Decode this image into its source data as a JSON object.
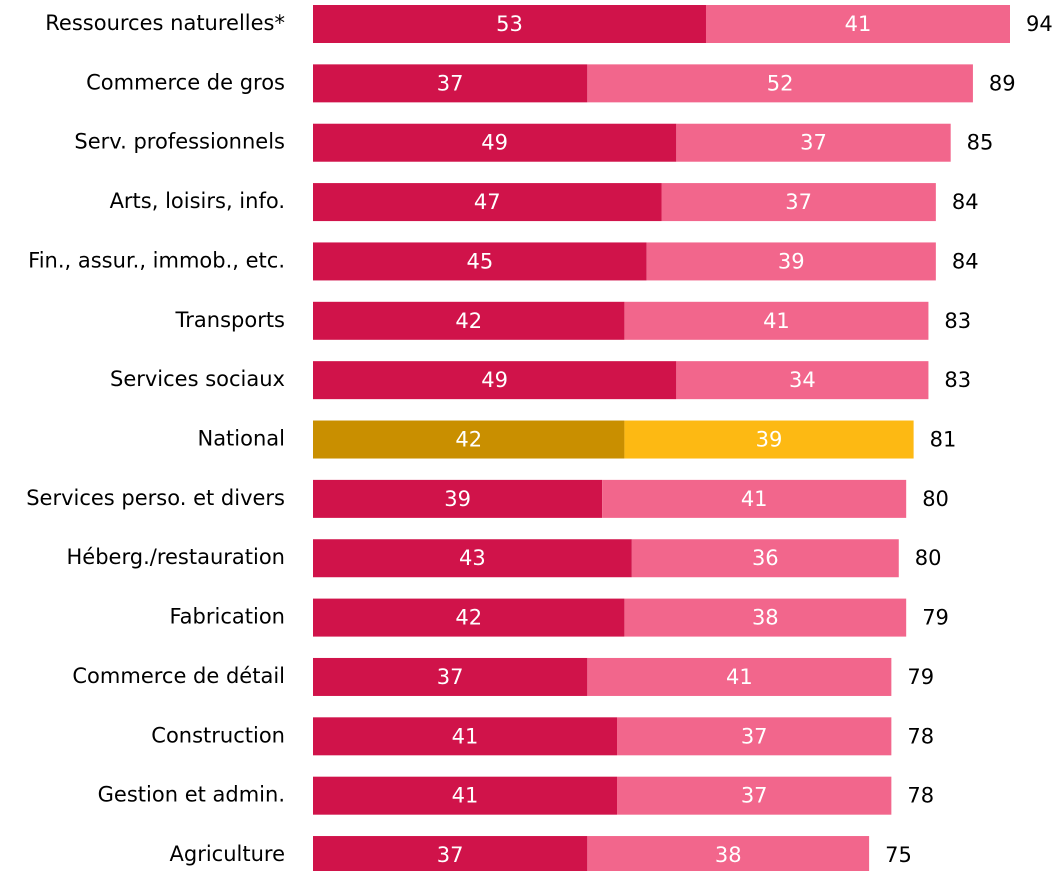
{
  "chart_data": {
    "type": "stacked-barh",
    "categories": [
      "Ressources naturelles*",
      "Commerce de gros",
      "Serv. professionnels",
      "Arts, loisirs, info.",
      "Fin., assur., immob., etc.",
      "Transports",
      "Services sociaux",
      "National",
      "Services perso. et divers",
      "Héberg./restauration",
      "Fabrication",
      "Commerce de détail",
      "Construction",
      "Gestion et admin.",
      "Agriculture"
    ],
    "series": [
      {
        "color": "#d0134a",
        "values": [
          53,
          37,
          49,
          47,
          45,
          42,
          49,
          42,
          39,
          43,
          42,
          37,
          41,
          41,
          37
        ]
      },
      {
        "color": "#f2668c",
        "values": [
          41,
          52,
          37,
          37,
          39,
          41,
          34,
          39,
          41,
          36,
          38,
          41,
          37,
          37,
          38
        ]
      }
    ],
    "totals": [
      94,
      89,
      85,
      84,
      84,
      83,
      83,
      81,
      80,
      80,
      79,
      79,
      78,
      78,
      75
    ],
    "highlight": "National",
    "highlight_colors": [
      "#c98f00",
      "#fdb913"
    ]
  }
}
